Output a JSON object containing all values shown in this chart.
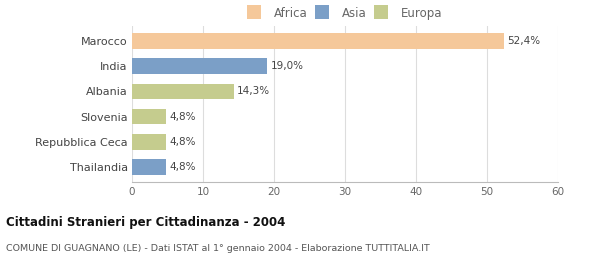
{
  "categories": [
    "Marocco",
    "India",
    "Albania",
    "Slovenia",
    "Repubblica Ceca",
    "Thailandia"
  ],
  "values": [
    52.4,
    19.0,
    14.3,
    4.8,
    4.8,
    4.8
  ],
  "labels": [
    "52,4%",
    "19,0%",
    "14,3%",
    "4,8%",
    "4,8%",
    "4,8%"
  ],
  "colors": [
    "#f5c89a",
    "#7b9fc7",
    "#c5cc8e",
    "#c5cc8e",
    "#c5cc8e",
    "#7b9fc7"
  ],
  "legend": [
    {
      "label": "Africa",
      "color": "#f5c89a"
    },
    {
      "label": "Asia",
      "color": "#7b9fc7"
    },
    {
      "label": "Europa",
      "color": "#c5cc8e"
    }
  ],
  "xlim": [
    0,
    60
  ],
  "xticks": [
    0,
    10,
    20,
    30,
    40,
    50,
    60
  ],
  "title": "Cittadini Stranieri per Cittadinanza - 2004",
  "subtitle": "COMUNE DI GUAGNANO (LE) - Dati ISTAT al 1° gennaio 2004 - Elaborazione TUTTITALIA.IT",
  "background_color": "#ffffff",
  "grid_color": "#dddddd"
}
